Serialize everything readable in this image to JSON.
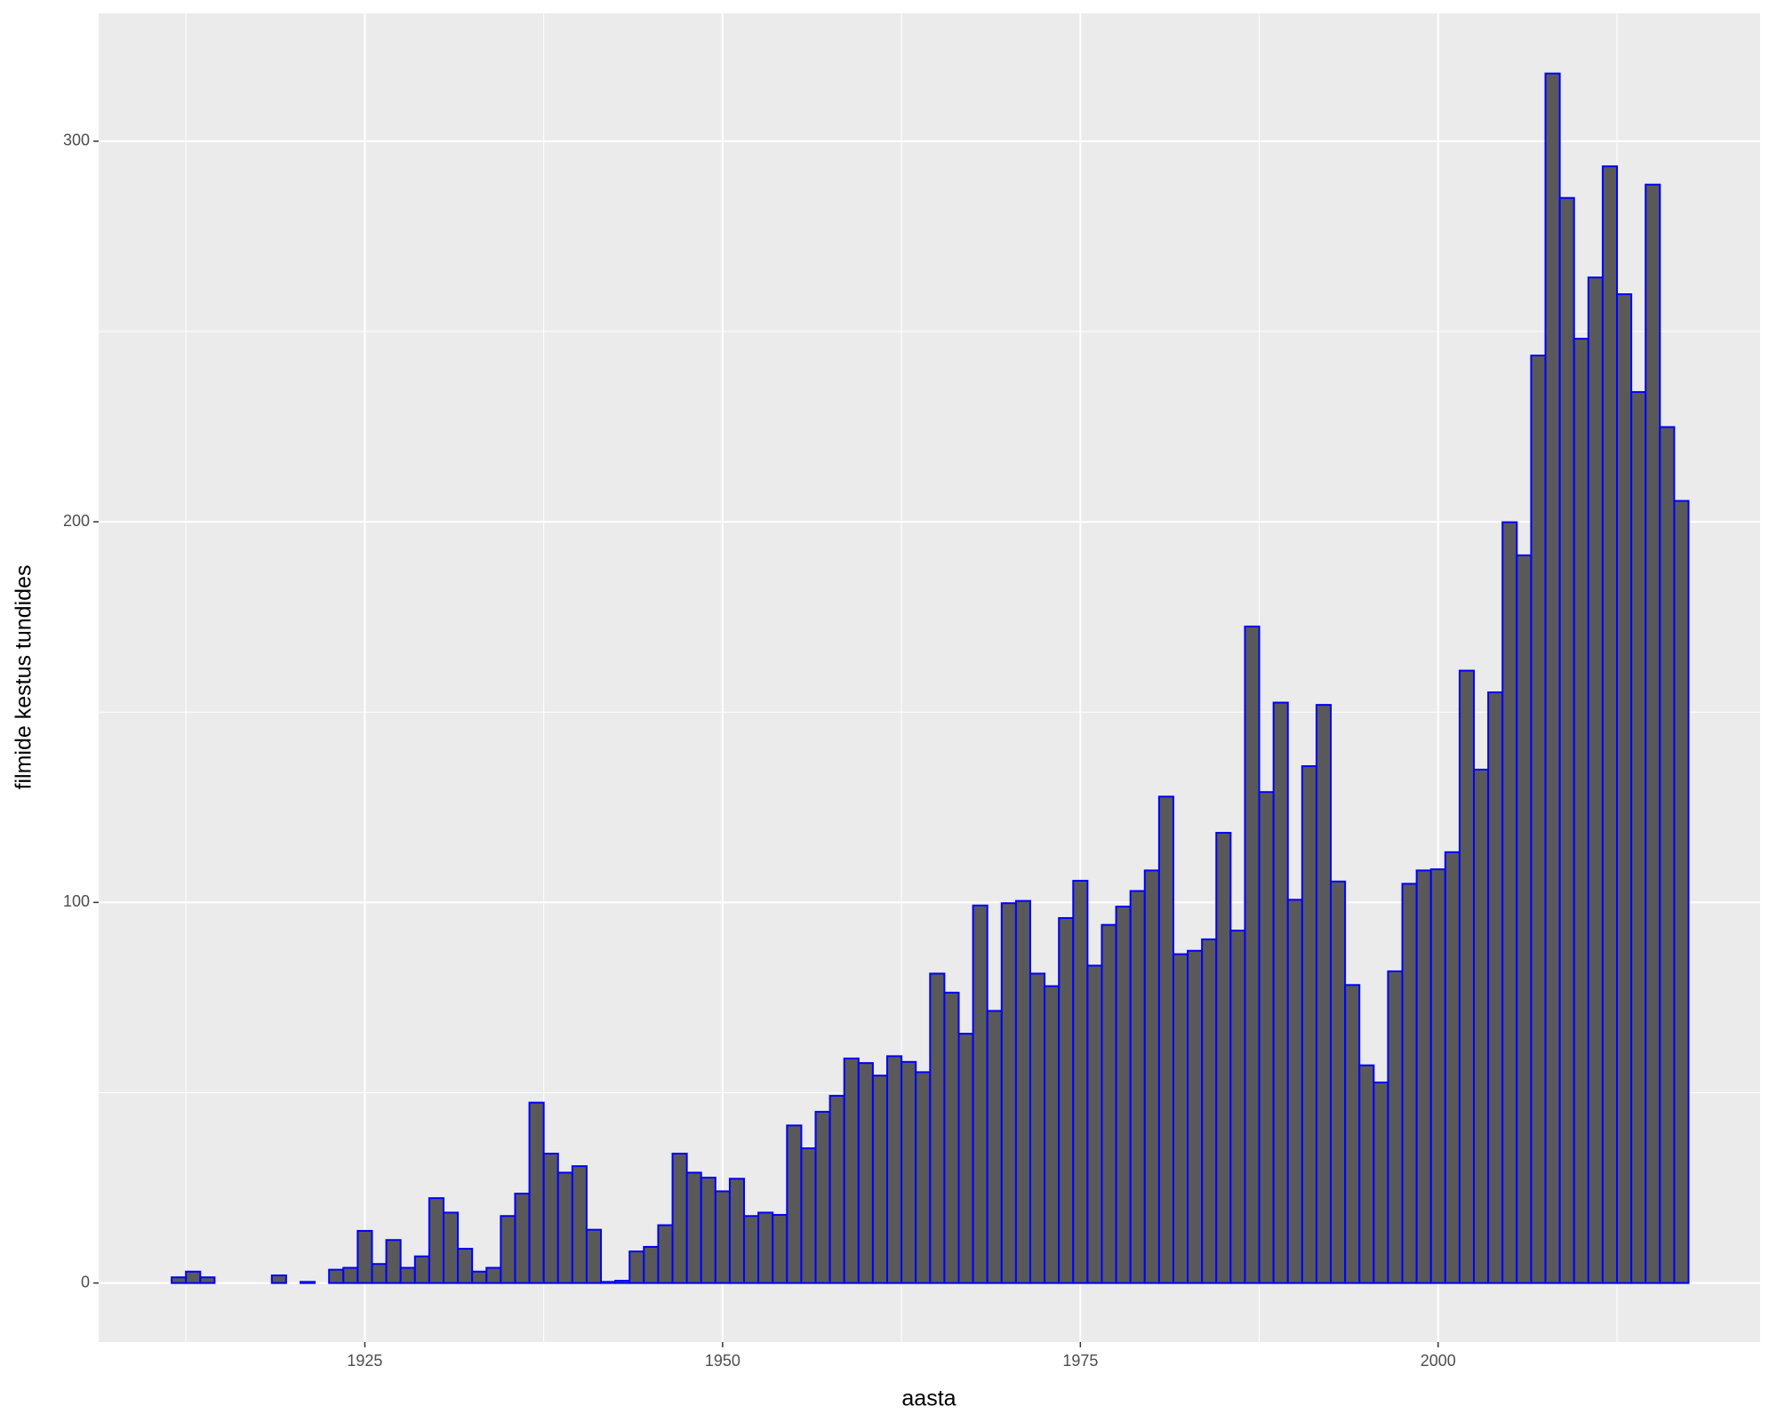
{
  "chart_data": {
    "type": "histogram",
    "x_label": "aasta",
    "y_label": "filmide kestus tundides",
    "bins": [
      1911.5,
      1912.5,
      1913.5,
      1914.5,
      1915.5,
      1916.5,
      1917.5,
      1918.5,
      1919.5,
      1920.5,
      1921.5,
      1922.5,
      1923.5,
      1924.5,
      1925.5,
      1926.5,
      1927.5,
      1928.5,
      1929.5,
      1930.5,
      1931.5,
      1932.5,
      1933.5,
      1934.5,
      1935.5,
      1936.5,
      1937.5,
      1938.5,
      1939.5,
      1940.5,
      1941.5,
      1942.5,
      1943.5,
      1944.5,
      1945.5,
      1946.5,
      1947.5,
      1948.5,
      1949.5,
      1950.5,
      1951.5,
      1952.5,
      1953.5,
      1954.5,
      1955.5,
      1956.5,
      1957.5,
      1958.5,
      1959.5,
      1960.5,
      1961.5,
      1962.5,
      1963.5,
      1964.5,
      1965.5,
      1966.5,
      1967.5,
      1968.5,
      1969.5,
      1970.5,
      1971.5,
      1972.5,
      1973.5,
      1974.5,
      1975.5,
      1976.5,
      1977.5,
      1978.5,
      1979.5,
      1980.5,
      1981.5,
      1982.5,
      1983.5,
      1984.5,
      1985.5,
      1986.5,
      1987.5,
      1988.5,
      1989.5,
      1990.5,
      1991.5,
      1992.5,
      1993.5,
      1994.5,
      1995.5,
      1996.5,
      1997.5,
      1998.5,
      1999.5,
      2000.5,
      2001.5,
      2002.5,
      2003.5,
      2004.5,
      2005.5,
      2006.5,
      2007.5,
      2008.5,
      2009.5,
      2010.5,
      2011.5,
      2012.5,
      2013.5,
      2014.5,
      2015.5,
      2016.5,
      2017.5
    ],
    "values": [
      1.5,
      3,
      1.5,
      0,
      0,
      0,
      0,
      2,
      0,
      0.3,
      0,
      3.5,
      4,
      13.7,
      5,
      11.3,
      4,
      7,
      22.3,
      18.5,
      9,
      3,
      4,
      17.6,
      23.5,
      47.4,
      34,
      29,
      30.7,
      14,
      0.3,
      0.6,
      8.3,
      9.5,
      15.2,
      34,
      29,
      27.7,
      24.1,
      27.4,
      17.6,
      18.5,
      17.9,
      41.4,
      35.4,
      45,
      49.2,
      59,
      57.8,
      54.5,
      59.6,
      58.1,
      55.4,
      81.3,
      76.3,
      65.5,
      99.2,
      71.5,
      99.8,
      100.4,
      81.3,
      78,
      95.9,
      105.7,
      83.4,
      94.1,
      98.9,
      103,
      108.4,
      127.8,
      86.4,
      87.3,
      90.3,
      118.3,
      92.6,
      172.5,
      129,
      152.5,
      100.7,
      135.8,
      151.9,
      105.5,
      78.3,
      57.2,
      52.7,
      81.9,
      104.9,
      108.4,
      108.7,
      113.2,
      160.9,
      134.9,
      155.2,
      199.9,
      191.2,
      243.7,
      317.8,
      285.1,
      248.1,
      264.2,
      293.4,
      259.8,
      234.1,
      288.6,
      224.9,
      205.5
    ],
    "color": "#595959",
    "edge_color": "#0000ff",
    "xlim": [
      1906.4,
      2022.5
    ],
    "ylim": [
      -15.5,
      333.6
    ],
    "xticks": [
      1925,
      1950,
      1975,
      2000
    ],
    "yticks": [
      0,
      100,
      200,
      300
    ],
    "xminorticks": [
      1912.5,
      1937.5,
      1962.5,
      1987.5,
      2012.5
    ],
    "yminorticks": [
      50,
      150,
      250
    ],
    "grid": true
  }
}
